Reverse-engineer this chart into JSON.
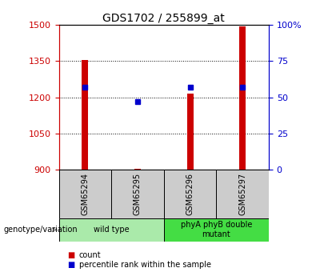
{
  "title": "GDS1702 / 255899_at",
  "samples": [
    "GSM65294",
    "GSM65295",
    "GSM65296",
    "GSM65297"
  ],
  "counts": [
    1355,
    905,
    1215,
    1495
  ],
  "percentiles": [
    57,
    47,
    57,
    57
  ],
  "ylim_left": [
    900,
    1500
  ],
  "ylim_right": [
    0,
    100
  ],
  "yticks_left": [
    900,
    1050,
    1200,
    1350,
    1500
  ],
  "yticks_right": [
    0,
    25,
    50,
    75,
    100
  ],
  "ytick_labels_right": [
    "0",
    "25",
    "50",
    "75",
    "100%"
  ],
  "groups": [
    {
      "label": "wild type",
      "samples": [
        0,
        1
      ],
      "color": "#aaeaaa"
    },
    {
      "label": "phyA phyB double\nmutant",
      "samples": [
        2,
        3
      ],
      "color": "#44dd44"
    }
  ],
  "bar_color": "#cc0000",
  "point_color": "#0000cc",
  "bar_width": 0.12,
  "bg_color": "#ffffff",
  "sample_box_color": "#cccccc",
  "legend_count_label": "count",
  "legend_pct_label": "percentile rank within the sample",
  "genotype_label": "genotype/variation",
  "title_fontsize": 10,
  "tick_fontsize": 8,
  "label_fontsize": 8
}
